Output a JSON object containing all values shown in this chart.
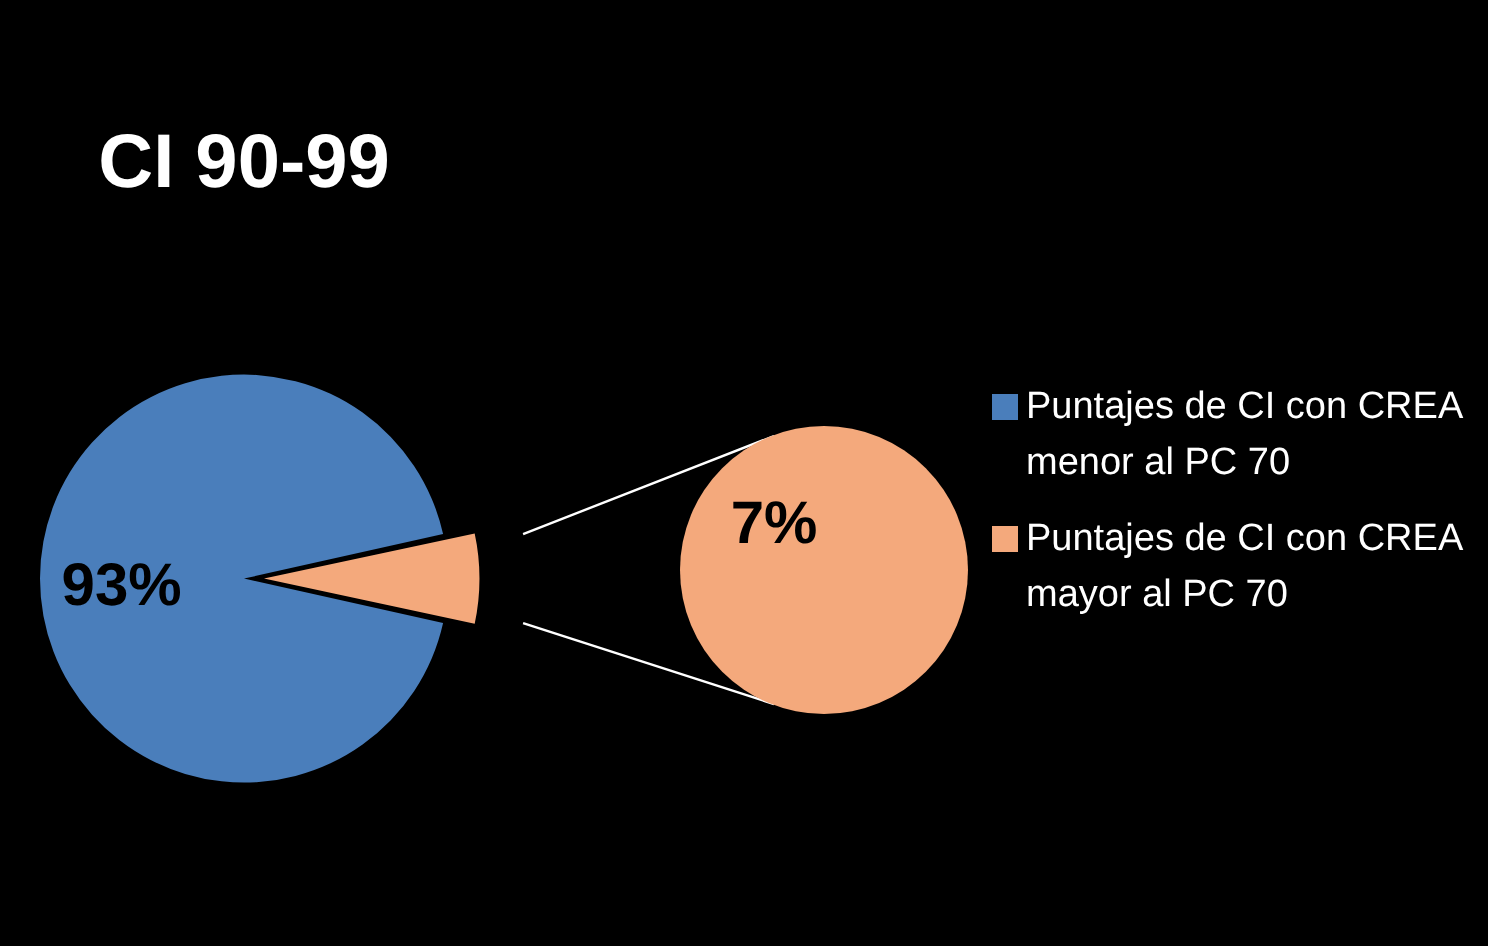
{
  "chart_data": {
    "type": "pie",
    "title": "CI 90-99",
    "categories": [
      "Puntajes de CI con CREA menor al PC 70",
      "Puntajes de CI  con CREA  mayor al PC 70"
    ],
    "values": [
      93,
      7
    ],
    "colors": [
      "#4a7ebb",
      "#f4a97c"
    ],
    "value_labels": [
      "93%",
      "7%"
    ],
    "legend": "right"
  }
}
